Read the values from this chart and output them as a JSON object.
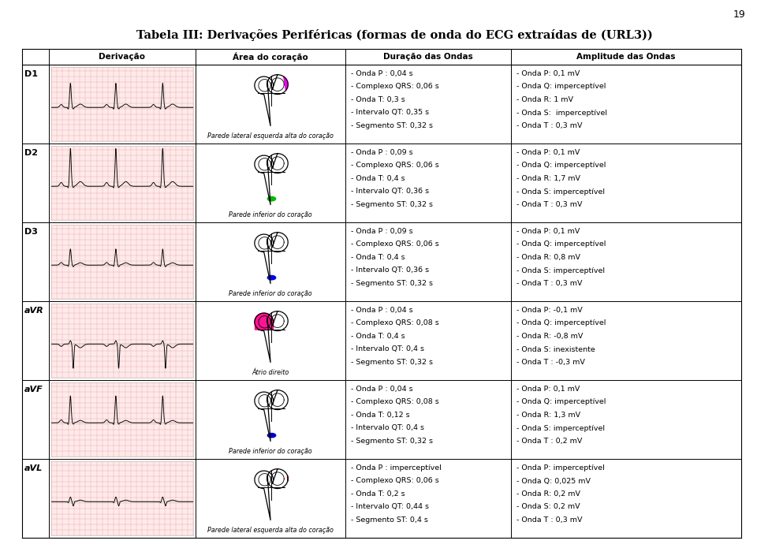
{
  "title": "Tabela III: Derivações Periféricas (formas de onda do ECG extraídas de (URL3))",
  "page_number": "19",
  "headers": [
    "Derivação",
    "Área do coração",
    "Duração das Ondas",
    "Amplitude das Ondas"
  ],
  "rows": [
    {
      "label": "D1",
      "area": "Parede lateral esquerda alta do coração",
      "heart_color": "#EE00EE",
      "heart_pos": "top_right",
      "duracao": [
        "- Onda P : 0,04 s",
        "- Complexo QRS: 0,06 s",
        "- Onda T: 0,3 s",
        "- Intervalo QT: 0,35 s",
        "- Segmento ST: 0,32 s"
      ],
      "amplitude": [
        "- Onda P: 0,1 mV",
        "- Onda Q: imperceptível",
        "- Onda R: 1 mV",
        "- Onda S:  imperceptível",
        "- Onda T : 0,3 mV"
      ],
      "ecg_type": "D1"
    },
    {
      "label": "D2",
      "area": "Parede inferior do coração",
      "heart_color": "#00BB00",
      "heart_pos": "bottom_tip",
      "duracao": [
        "- Onda P : 0,09 s",
        "- Complexo QRS: 0,06 s",
        "- Onda T: 0,4 s",
        "- Intervalo QT: 0,36 s",
        "- Segmento ST: 0,32 s"
      ],
      "amplitude": [
        "- Onda P: 0,1 mV",
        "- Onda Q: imperceptível",
        "- Onda R: 1,7 mV",
        "- Onda S: imperceptível",
        "- Onda T : 0,3 mV"
      ],
      "ecg_type": "D2"
    },
    {
      "label": "D3",
      "area": "Parede inferior do coração",
      "heart_color": "#0000EE",
      "heart_pos": "bottom_tip",
      "duracao": [
        "- Onda P : 0,09 s",
        "- Complexo QRS: 0,06 s",
        "- Onda T: 0,4 s",
        "- Intervalo QT: 0,36 s",
        "- Segmento ST: 0,32 s"
      ],
      "amplitude": [
        "- Onda P: 0,1 mV",
        "- Onda Q: imperceptível",
        "- Onda R: 0,8 mV",
        "- Onda S: imperceptível",
        "- Onda T : 0,3 mV"
      ],
      "ecg_type": "D3"
    },
    {
      "label": "aVR",
      "area": "Átrio direito",
      "heart_color": "#FF1493",
      "heart_pos": "left_atrium",
      "duracao": [
        "- Onda P : 0,04 s",
        "- Complexo QRS: 0,08 s",
        "- Onda T: 0,4 s",
        "- Intervalo QT: 0,4 s",
        "- Segmento ST: 0,32 s"
      ],
      "amplitude": [
        "- Onda P: -0,1 mV",
        "- Onda Q: imperceptível",
        "- Onda R: -0,8 mV",
        "- Onda S: inexistente",
        "- Onda T : -0,3 mV"
      ],
      "ecg_type": "aVR"
    },
    {
      "label": "aVF",
      "area": "Parede inferior do coração",
      "heart_color": "#0000CC",
      "heart_pos": "bottom_tip",
      "duracao": [
        "- Onda P : 0,04 s",
        "- Complexo QRS: 0,08 s",
        "- Onda T: 0,12 s",
        "- Intervalo QT: 0,4 s",
        "- Segmento ST: 0,32 s"
      ],
      "amplitude": [
        "- Onda P: 0,1 mV",
        "- Onda Q: imperceptível",
        "- Onda R: 1,3 mV",
        "- Onda S: imperceptível",
        "- Onda T : 0,2 mV"
      ],
      "ecg_type": "aVF"
    },
    {
      "label": "aVL",
      "area": "Parede lateral esquerda alta do coração",
      "heart_color": "#DD0000",
      "heart_pos": "top_right_small",
      "duracao": [
        "- Onda P : imperceptível",
        "- Complexo QRS: 0,06 s",
        "- Onda T: 0,2 s",
        "- Intervalo QT: 0,44 s",
        "- Segmento ST: 0,4 s"
      ],
      "amplitude": [
        "- Onda P: imperceptível",
        "- Onda Q: 0,025 mV",
        "- Onda R: 0,2 mV",
        "- Onda S: 0,2 mV",
        "- Onda T : 0,3 mV"
      ],
      "ecg_type": "aVL"
    }
  ]
}
